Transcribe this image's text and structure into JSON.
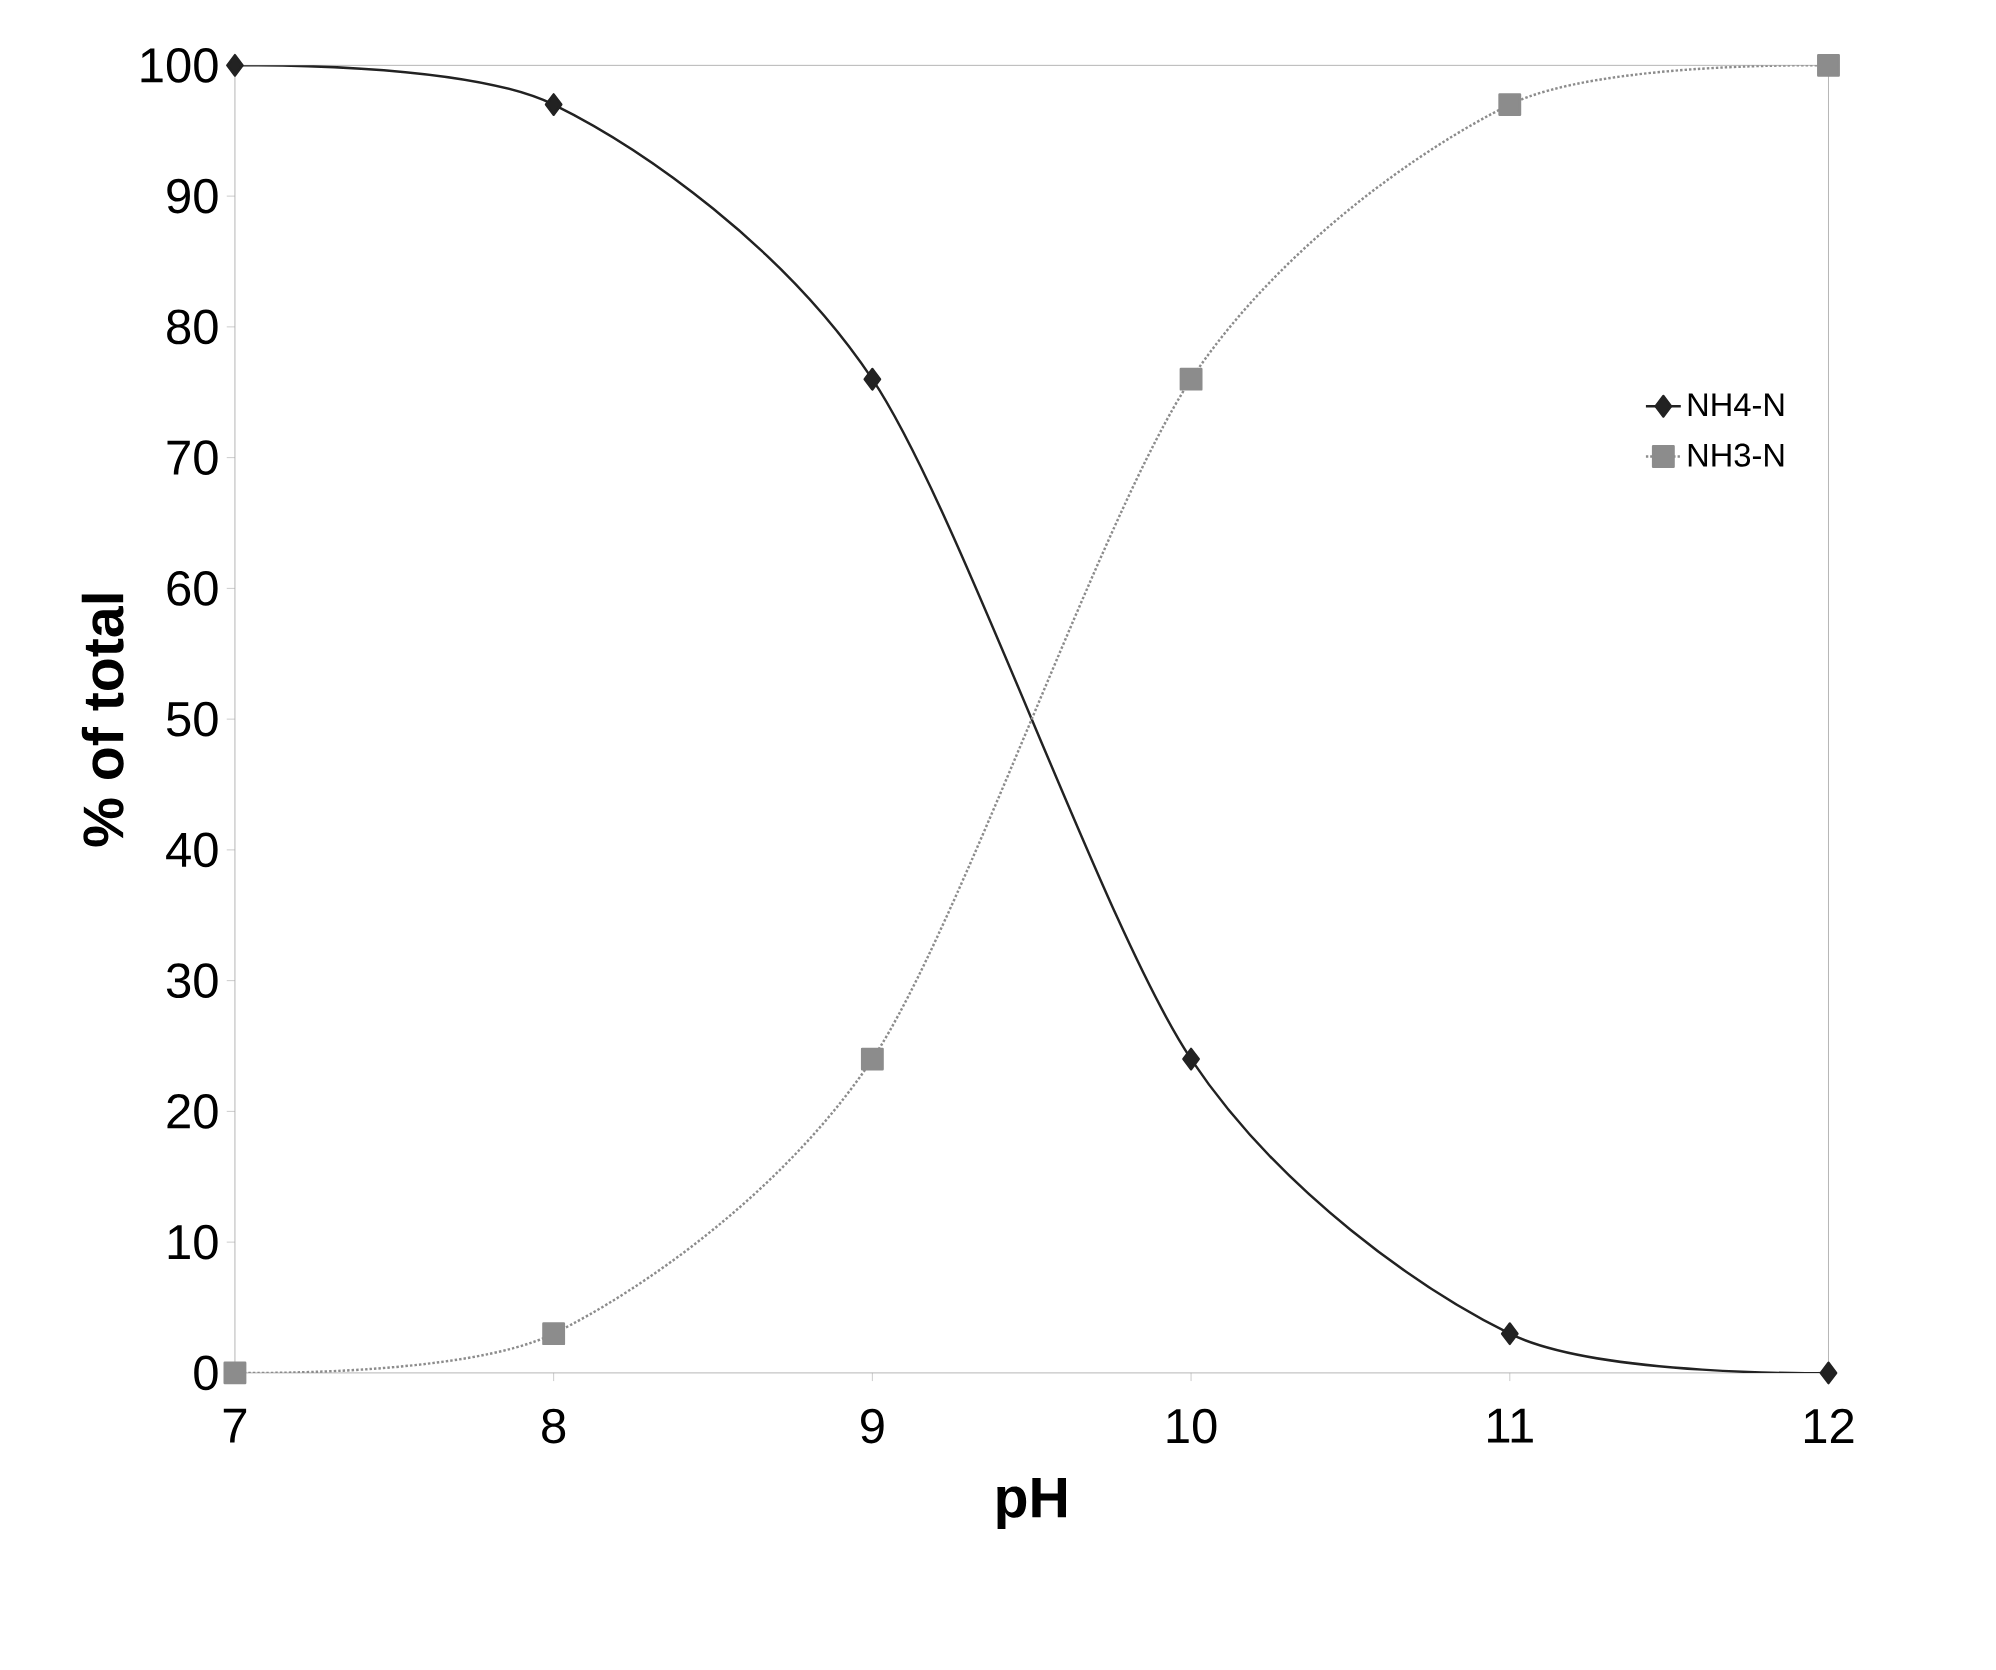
{
  "chart_data": {
    "type": "line",
    "xlabel": "pH",
    "ylabel": "% of total",
    "x": [
      7,
      8,
      9,
      10,
      11,
      12
    ],
    "series": [
      {
        "name": "NH4-N",
        "color": "#222222",
        "values": [
          100,
          97,
          76,
          24,
          3,
          0
        ],
        "marker": "diamond",
        "line_style": "solid"
      },
      {
        "name": "NH3-N",
        "color": "#8c8c8c",
        "values": [
          0,
          3,
          24,
          76,
          97,
          100
        ],
        "marker": "square",
        "line_style": "dotted"
      }
    ],
    "xlim": [
      7,
      12
    ],
    "xticks": [
      7,
      8,
      9,
      10,
      11,
      12
    ],
    "ylim": [
      0,
      100
    ],
    "yticks": [
      0,
      10,
      20,
      30,
      40,
      50,
      60,
      70,
      80,
      90,
      100
    ],
    "legend": "right"
  }
}
